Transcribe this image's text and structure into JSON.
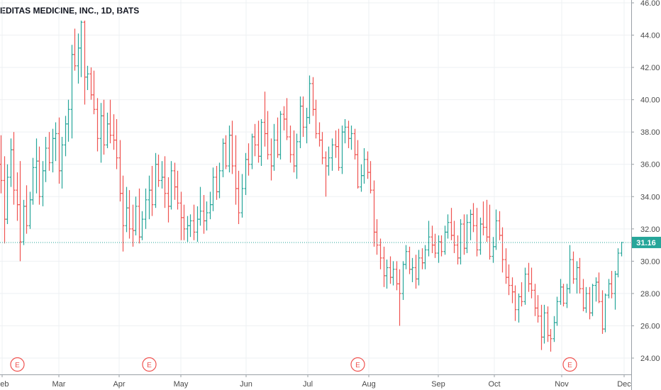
{
  "colors": {
    "up": "#26a69a",
    "down": "#ef5350",
    "grid": "#eef0f3",
    "axis": "#9aa0a6",
    "price_line": "#26a69a",
    "earnings": "#ef5350"
  },
  "chart_data": {
    "type": "ohlc",
    "title": "EDITAS MEDICINE, INC., 1D, BATS",
    "xlabel": "",
    "ylabel": "",
    "ylim": [
      23.5,
      46
    ],
    "y_ticks": [
      "24.00",
      "26.00",
      "28.00",
      "30.00",
      "32.00",
      "34.00",
      "36.00",
      "38.00",
      "40.00",
      "42.00",
      "44.00",
      "46.00"
    ],
    "x_ticks": [
      "Feb",
      "Mar",
      "Apr",
      "May",
      "Jun",
      "Jul",
      "Aug",
      "Sep",
      "Oct",
      "Nov",
      "Dec"
    ],
    "last_price": 31.16,
    "last_price_label": "31.16",
    "earnings_marker": "E",
    "earnings_positions": [
      5,
      46,
      111,
      177
    ],
    "grid": true,
    "bars": [
      [
        36.0,
        37.8,
        34.2,
        35.0
      ],
      [
        35.0,
        36.5,
        31.1,
        32.6
      ],
      [
        32.6,
        36.0,
        32.3,
        35.2
      ],
      [
        35.2,
        37.6,
        34.6,
        36.9
      ],
      [
        36.9,
        38.0,
        33.5,
        34.4
      ],
      [
        34.4,
        35.5,
        32.5,
        33.5
      ],
      [
        33.5,
        36.2,
        30.0,
        31.2
      ],
      [
        31.2,
        33.8,
        31.0,
        33.4
      ],
      [
        33.4,
        34.7,
        31.7,
        32.2
      ],
      [
        32.2,
        34.3,
        32.0,
        33.8
      ],
      [
        33.8,
        36.4,
        33.5,
        35.8
      ],
      [
        35.8,
        37.6,
        34.2,
        36.2
      ],
      [
        36.2,
        37.1,
        33.5,
        34.0
      ],
      [
        34.0,
        36.2,
        33.4,
        35.6
      ],
      [
        35.6,
        37.7,
        34.9,
        37.0
      ],
      [
        37.0,
        38.0,
        35.6,
        36.1
      ],
      [
        36.1,
        38.2,
        35.5,
        37.6
      ],
      [
        37.6,
        38.6,
        36.2,
        37.9
      ],
      [
        37.9,
        38.9,
        34.8,
        35.6
      ],
      [
        35.6,
        37.7,
        34.5,
        37.2
      ],
      [
        37.2,
        39.0,
        36.5,
        38.5
      ],
      [
        38.5,
        40.0,
        37.4,
        39.4
      ],
      [
        39.4,
        43.4,
        37.6,
        42.8
      ],
      [
        42.8,
        44.4,
        41.8,
        42.1
      ],
      [
        42.1,
        44.1,
        41.0,
        43.2
      ],
      [
        43.2,
        44.9,
        41.4,
        44.8
      ],
      [
        44.8,
        44.9,
        39.7,
        41.4
      ],
      [
        41.4,
        42.1,
        40.6,
        41.6
      ],
      [
        41.6,
        42.0,
        40.0,
        40.3
      ],
      [
        40.3,
        41.8,
        39.1,
        39.4
      ],
      [
        39.4,
        40.1,
        36.8,
        37.6
      ],
      [
        37.6,
        39.8,
        36.1,
        39.0
      ],
      [
        39.0,
        40.0,
        36.6,
        37.2
      ],
      [
        37.2,
        39.2,
        37.0,
        38.5
      ],
      [
        38.5,
        40.0,
        37.3,
        37.8
      ],
      [
        37.8,
        39.1,
        36.9,
        37.5
      ],
      [
        37.5,
        38.8,
        35.7,
        36.4
      ],
      [
        36.4,
        37.5,
        33.7,
        34.2
      ],
      [
        34.2,
        35.3,
        30.6,
        32.2
      ],
      [
        32.2,
        34.6,
        31.8,
        33.3
      ],
      [
        33.3,
        34.4,
        31.4,
        32.0
      ],
      [
        32.0,
        33.5,
        30.9,
        31.9
      ],
      [
        31.9,
        34.0,
        31.6,
        33.4
      ],
      [
        33.4,
        34.5,
        31.1,
        31.5
      ],
      [
        31.5,
        33.1,
        31.3,
        32.6
      ],
      [
        32.6,
        34.5,
        32.0,
        33.8
      ],
      [
        33.8,
        35.3,
        32.6,
        34.4
      ],
      [
        34.4,
        35.9,
        32.8,
        33.5
      ],
      [
        33.5,
        36.7,
        33.3,
        36.0
      ],
      [
        36.0,
        36.6,
        34.6,
        35.0
      ],
      [
        35.0,
        36.2,
        34.5,
        35.2
      ],
      [
        35.2,
        36.5,
        33.3,
        34.2
      ],
      [
        34.2,
        35.2,
        32.4,
        33.4
      ],
      [
        33.4,
        36.2,
        33.2,
        35.6
      ],
      [
        35.6,
        36.1,
        33.8,
        34.6
      ],
      [
        34.6,
        35.6,
        33.2,
        33.6
      ],
      [
        33.6,
        34.3,
        31.3,
        32.7
      ],
      [
        32.7,
        33.5,
        31.3,
        32.0
      ],
      [
        32.0,
        32.8,
        31.2,
        32.2
      ],
      [
        32.2,
        32.9,
        31.5,
        32.5
      ],
      [
        32.5,
        33.5,
        31.3,
        31.8
      ],
      [
        31.8,
        33.4,
        31.2,
        32.6
      ],
      [
        32.6,
        34.6,
        32.2,
        33.1
      ],
      [
        33.1,
        34.1,
        31.7,
        32.5
      ],
      [
        32.5,
        33.7,
        31.9,
        33.0
      ],
      [
        33.0,
        34.3,
        32.6,
        33.5
      ],
      [
        33.5,
        35.8,
        33.1,
        35.2
      ],
      [
        35.2,
        35.9,
        33.8,
        34.3
      ],
      [
        34.3,
        36.1,
        33.9,
        35.6
      ],
      [
        35.6,
        37.6,
        35.2,
        37.3
      ],
      [
        37.3,
        37.8,
        35.7,
        35.9
      ],
      [
        35.9,
        38.4,
        35.5,
        37.8
      ],
      [
        37.8,
        38.7,
        35.4,
        35.9
      ],
      [
        35.9,
        37.8,
        33.5,
        34.5
      ],
      [
        34.5,
        35.6,
        32.3,
        33.0
      ],
      [
        33.0,
        35.4,
        32.7,
        34.5
      ],
      [
        34.5,
        36.7,
        34.1,
        36.3
      ],
      [
        36.3,
        37.3,
        35.3,
        36.0
      ],
      [
        36.0,
        37.9,
        35.7,
        37.7
      ],
      [
        37.7,
        38.5,
        36.5,
        37.2
      ],
      [
        37.2,
        38.7,
        36.1,
        36.5
      ],
      [
        36.5,
        38.8,
        35.9,
        38.6
      ],
      [
        38.6,
        40.5,
        37.1,
        37.9
      ],
      [
        37.9,
        39.3,
        36.3,
        36.6
      ],
      [
        36.6,
        37.6,
        35.0,
        35.9
      ],
      [
        35.9,
        38.5,
        35.6,
        37.5
      ],
      [
        37.5,
        38.9,
        36.4,
        36.6
      ],
      [
        36.6,
        39.3,
        36.3,
        39.1
      ],
      [
        39.1,
        39.6,
        38.1,
        38.8
      ],
      [
        38.8,
        40.1,
        37.5,
        37.7
      ],
      [
        37.7,
        38.4,
        36.1,
        36.6
      ],
      [
        36.6,
        38.1,
        35.5,
        35.9
      ],
      [
        35.9,
        37.9,
        35.1,
        37.4
      ],
      [
        37.4,
        40.2,
        37.0,
        39.6
      ],
      [
        39.6,
        40.2,
        37.7,
        38.3
      ],
      [
        38.3,
        39.5,
        37.3,
        38.9
      ],
      [
        38.9,
        41.5,
        38.5,
        41.0
      ],
      [
        41.0,
        41.4,
        39.0,
        39.4
      ],
      [
        39.4,
        40.0,
        37.6,
        37.9
      ],
      [
        37.9,
        38.6,
        37.1,
        37.5
      ],
      [
        37.5,
        38.0,
        36.0,
        36.4
      ],
      [
        36.4,
        36.8,
        34.0,
        35.9
      ],
      [
        35.9,
        37.1,
        35.3,
        36.4
      ],
      [
        36.4,
        37.6,
        35.6,
        37.2
      ],
      [
        37.2,
        38.1,
        36.4,
        37.1
      ],
      [
        37.1,
        38.2,
        35.6,
        35.8
      ],
      [
        35.8,
        38.4,
        35.4,
        38.0
      ],
      [
        38.0,
        38.8,
        37.3,
        38.3
      ],
      [
        38.3,
        38.7,
        37.0,
        37.6
      ],
      [
        37.6,
        38.4,
        36.9,
        37.9
      ],
      [
        37.9,
        38.2,
        36.3,
        36.6
      ],
      [
        36.6,
        37.5,
        34.5,
        34.6
      ],
      [
        34.6,
        36.0,
        34.3,
        35.3
      ],
      [
        35.3,
        37.0,
        34.8,
        36.3
      ],
      [
        36.3,
        36.8,
        35.1,
        35.5
      ],
      [
        35.5,
        36.2,
        34.2,
        34.4
      ],
      [
        34.4,
        35.0,
        30.9,
        31.8
      ],
      [
        31.8,
        32.6,
        30.4,
        31.0
      ],
      [
        31.0,
        31.4,
        29.5,
        30.2
      ],
      [
        30.2,
        30.9,
        28.4,
        29.1
      ],
      [
        29.1,
        30.1,
        28.3,
        29.6
      ],
      [
        29.6,
        30.3,
        28.6,
        29.0
      ],
      [
        29.0,
        30.0,
        28.5,
        29.5
      ],
      [
        29.5,
        30.0,
        28.2,
        28.6
      ],
      [
        28.6,
        29.5,
        26.0,
        28.0
      ],
      [
        28.0,
        30.0,
        27.6,
        29.8
      ],
      [
        29.8,
        31.0,
        29.5,
        30.6
      ],
      [
        30.6,
        30.9,
        29.2,
        29.5
      ],
      [
        29.5,
        30.2,
        28.7,
        29.6
      ],
      [
        29.6,
        30.4,
        28.3,
        28.9
      ],
      [
        28.9,
        30.7,
        28.5,
        30.2
      ],
      [
        30.2,
        30.8,
        29.5,
        29.9
      ],
      [
        29.9,
        31.0,
        29.5,
        30.7
      ],
      [
        30.7,
        32.5,
        30.3,
        31.5
      ],
      [
        31.5,
        32.2,
        30.5,
        31.0
      ],
      [
        31.0,
        31.7,
        30.2,
        30.5
      ],
      [
        30.5,
        31.6,
        29.9,
        31.2
      ],
      [
        31.2,
        31.6,
        30.3,
        30.6
      ],
      [
        30.6,
        32.2,
        30.4,
        31.8
      ],
      [
        31.8,
        32.9,
        31.4,
        32.4
      ],
      [
        32.4,
        33.3,
        31.3,
        31.6
      ],
      [
        31.6,
        32.5,
        30.5,
        31.0
      ],
      [
        31.0,
        31.6,
        29.8,
        30.2
      ],
      [
        30.2,
        32.6,
        29.8,
        32.3
      ],
      [
        32.3,
        32.9,
        30.4,
        30.8
      ],
      [
        30.8,
        32.9,
        30.5,
        32.4
      ],
      [
        32.4,
        33.2,
        31.3,
        32.9
      ],
      [
        32.9,
        33.6,
        31.8,
        32.2
      ],
      [
        32.2,
        33.3,
        30.3,
        30.7
      ],
      [
        30.7,
        32.7,
        30.4,
        32.3
      ],
      [
        32.3,
        33.7,
        31.6,
        32.1
      ],
      [
        32.1,
        33.8,
        31.2,
        31.5
      ],
      [
        31.5,
        33.5,
        30.1,
        30.3
      ],
      [
        30.3,
        31.5,
        29.9,
        30.9
      ],
      [
        30.9,
        33.2,
        30.7,
        32.5
      ],
      [
        32.5,
        33.1,
        31.3,
        31.6
      ],
      [
        31.6,
        32.1,
        29.3,
        30.1
      ],
      [
        30.1,
        30.8,
        28.6,
        29.0
      ],
      [
        29.0,
        29.8,
        27.9,
        28.5
      ],
      [
        28.5,
        29.0,
        27.4,
        28.1
      ],
      [
        28.1,
        28.5,
        26.3,
        27.0
      ],
      [
        27.0,
        28.0,
        26.2,
        27.8
      ],
      [
        27.8,
        28.7,
        27.2,
        27.5
      ],
      [
        27.5,
        29.6,
        27.3,
        29.2
      ],
      [
        29.2,
        29.9,
        28.1,
        28.6
      ],
      [
        28.6,
        29.6,
        27.7,
        28.2
      ],
      [
        28.2,
        28.6,
        26.6,
        27.1
      ],
      [
        27.1,
        27.9,
        26.2,
        26.6
      ],
      [
        26.6,
        27.3,
        24.5,
        25.3
      ],
      [
        25.3,
        27.3,
        24.9,
        26.8
      ],
      [
        26.8,
        27.2,
        25.0,
        25.4
      ],
      [
        25.4,
        25.8,
        24.4,
        25.2
      ],
      [
        25.2,
        26.6,
        25.0,
        26.2
      ],
      [
        26.2,
        27.8,
        26.0,
        27.5
      ],
      [
        27.5,
        28.9,
        27.3,
        28.4
      ],
      [
        28.4,
        28.6,
        27.2,
        27.4
      ],
      [
        27.4,
        28.6,
        27.1,
        28.3
      ],
      [
        28.3,
        31.0,
        28.0,
        30.1
      ],
      [
        30.1,
        30.6,
        28.6,
        28.9
      ],
      [
        28.9,
        30.0,
        28.0,
        29.6
      ],
      [
        29.6,
        30.2,
        28.0,
        28.3
      ],
      [
        28.3,
        28.9,
        26.9,
        27.1
      ],
      [
        27.1,
        28.4,
        26.8,
        28.0
      ],
      [
        28.0,
        28.4,
        26.4,
        26.8
      ],
      [
        26.8,
        28.6,
        26.6,
        28.5
      ],
      [
        28.5,
        29.0,
        27.5,
        28.7
      ],
      [
        28.7,
        29.3,
        27.4,
        27.5
      ],
      [
        27.5,
        28.2,
        25.5,
        25.8
      ],
      [
        25.8,
        28.0,
        25.6,
        27.9
      ],
      [
        27.9,
        28.9,
        27.7,
        28.6
      ],
      [
        28.6,
        29.4,
        27.7,
        28.0
      ],
      [
        28.0,
        29.4,
        27.0,
        29.2
      ],
      [
        29.2,
        30.8,
        29.0,
        30.5
      ],
      [
        30.5,
        31.2,
        30.3,
        31.16
      ]
    ]
  }
}
